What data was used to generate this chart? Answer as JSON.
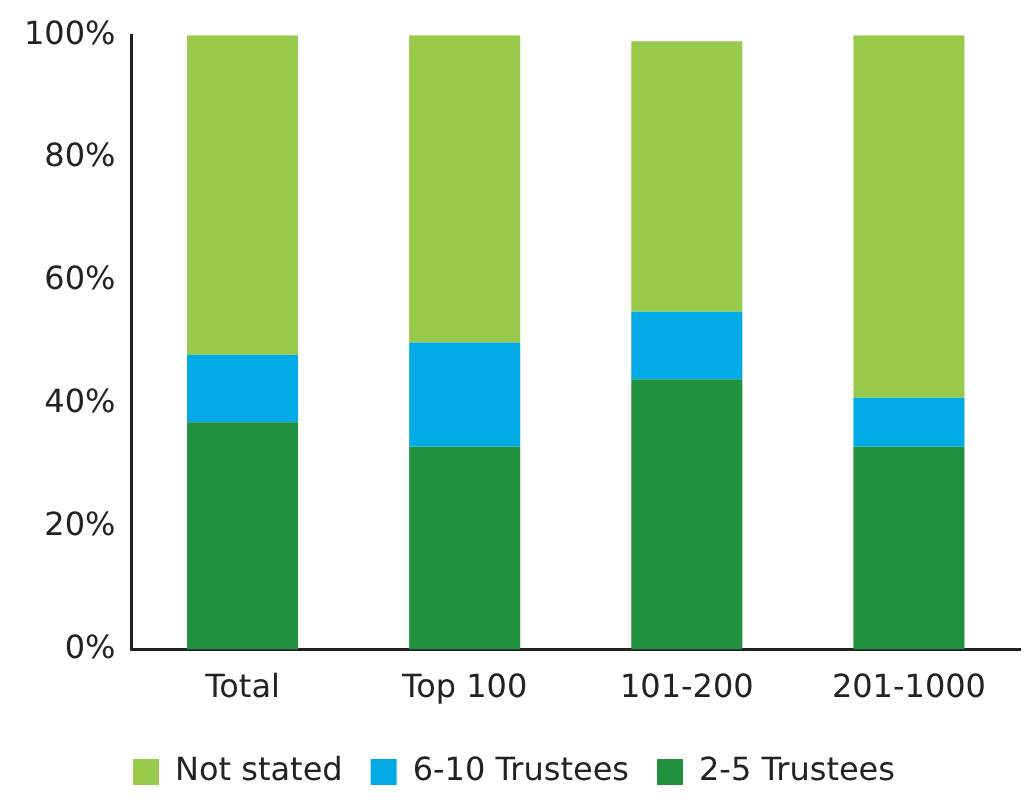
{
  "chart_data": {
    "type": "bar",
    "stacked": true,
    "categories": [
      "Total",
      "Top 100",
      "101-200",
      "201-1000"
    ],
    "series": [
      {
        "name": "2-5 Trustees",
        "color": "#21913f",
        "values": [
          37,
          33,
          44,
          33
        ]
      },
      {
        "name": "6-10 Trustees",
        "color": "#02abe6",
        "values": [
          11,
          17,
          11,
          8
        ]
      },
      {
        "name": "Not stated",
        "color": "#99c94b",
        "values": [
          52,
          50,
          44,
          59
        ]
      }
    ],
    "ylim": [
      0,
      100
    ],
    "yticks": [
      {
        "value": 0,
        "label": "0%"
      },
      {
        "value": 20,
        "label": "20%"
      },
      {
        "value": 40,
        "label": "40%"
      },
      {
        "value": 60,
        "label": "60%"
      },
      {
        "value": 80,
        "label": "80%"
      },
      {
        "value": 100,
        "label": "100%"
      }
    ],
    "grid": false,
    "legend": "bottom"
  }
}
